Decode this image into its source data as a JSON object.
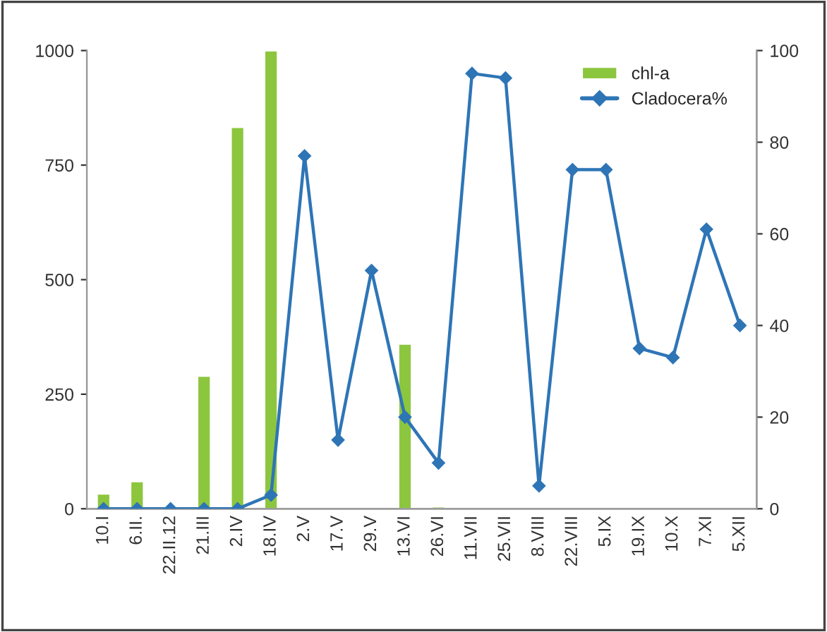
{
  "chart_data": {
    "type": "bar",
    "categories": [
      "10.I",
      "6.II.",
      "22.II.12",
      "21.III",
      "2.IV",
      "18.IV",
      "2.V",
      "17.V",
      "29.V",
      "13.VI",
      "26.VI",
      "11.VII",
      "25.VII",
      "8.VIII",
      "22.VIII",
      "5.IX",
      "19.IX",
      "10.X",
      "7.XI",
      "5.XII"
    ],
    "series": [
      {
        "name": "chl-a",
        "color": "#8cc63f",
        "values": [
          33,
          60,
          null,
          290,
          833,
          1000,
          2,
          2,
          2,
          360,
          5,
          2,
          2,
          2,
          2,
          2,
          2,
          2,
          2,
          2
        ]
      },
      {
        "name": "Cladocera%",
        "type": "line",
        "axis": "y2",
        "color": "#2e75b6",
        "values": [
          0,
          0,
          0,
          0,
          0,
          3,
          77,
          15,
          52,
          20,
          10,
          95,
          94,
          5,
          74,
          74,
          35,
          33,
          61,
          40
        ]
      }
    ],
    "ylim": [
      0,
      1000
    ],
    "yticks": [
      0,
      250,
      500,
      750,
      1000
    ],
    "y2lim": [
      0,
      100
    ],
    "y2ticks": [
      0,
      20,
      40,
      60,
      80,
      100
    ],
    "marker": "diamond",
    "legend": "top right",
    "grid": false
  }
}
